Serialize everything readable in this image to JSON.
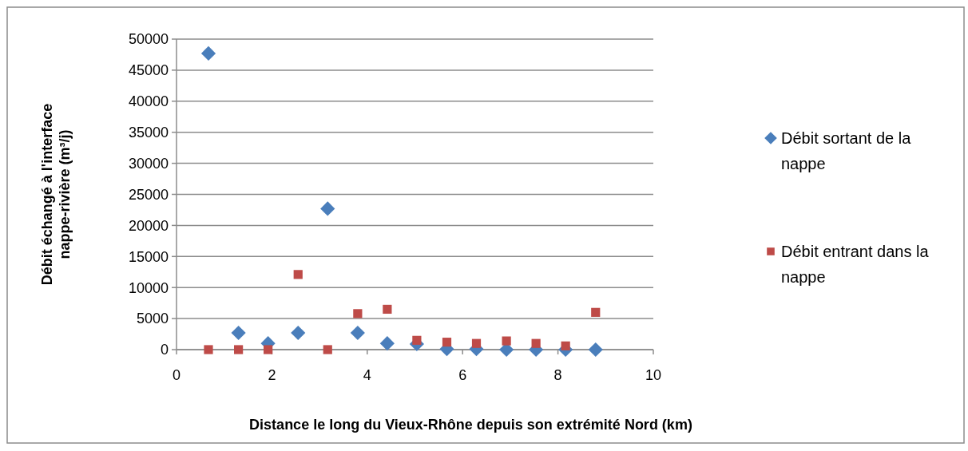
{
  "chart_data": {
    "type": "scatter",
    "xlabel": "Distance le long du Vieux-Rhône depuis son extrémité Nord (km)",
    "ylabel": "Débit échangé à l'interface nappe-rivière (m³/j)",
    "x": [
      0.67,
      1.3,
      1.92,
      2.55,
      3.17,
      3.8,
      4.42,
      5.04,
      5.67,
      6.29,
      6.92,
      7.54,
      8.16,
      8.79
    ],
    "series": [
      {
        "name": "Débit sortant de la nappe",
        "color": "#4a7ebb",
        "marker": "diamond",
        "values": [
          47700,
          2700,
          1000,
          2700,
          22700,
          2700,
          1000,
          900,
          100,
          100,
          0,
          0,
          0,
          0
        ]
      },
      {
        "name": "Débit entrant dans la nappe",
        "color": "#be4b48",
        "marker": "square",
        "values": [
          0,
          0,
          0,
          12100,
          0,
          5800,
          6500,
          1500,
          1200,
          1000,
          1400,
          1000,
          600,
          6000
        ]
      }
    ],
    "xlim": [
      0,
      10
    ],
    "xticks": [
      0,
      2,
      4,
      6,
      8,
      10
    ],
    "ylim": [
      0,
      50000
    ],
    "yticks": [
      0,
      5000,
      10000,
      15000,
      20000,
      25000,
      30000,
      35000,
      40000,
      45000,
      50000
    ],
    "grid": "y",
    "legend": "right"
  }
}
